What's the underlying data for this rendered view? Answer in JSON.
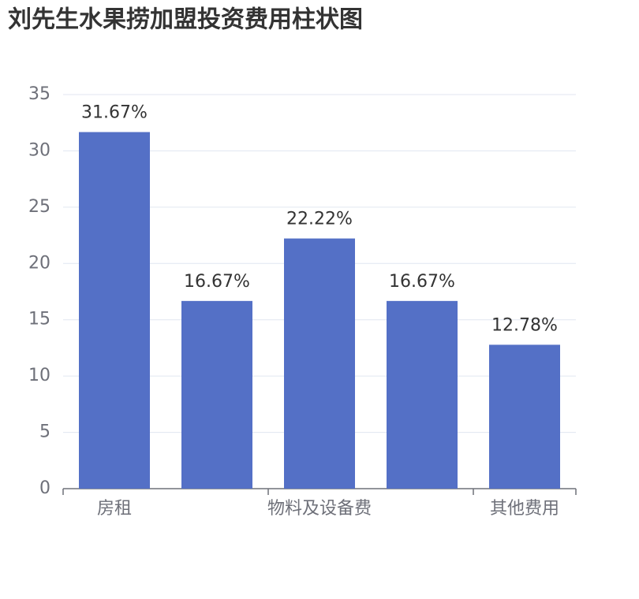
{
  "chart_data": {
    "type": "bar",
    "title": "刘先生水果捞加盟投资费用柱状图",
    "categories": [
      "房租",
      null,
      "物料及设备费",
      null,
      "其他费用"
    ],
    "values": [
      31.67,
      16.67,
      22.22,
      16.67,
      12.78
    ],
    "value_labels": [
      "31.67%",
      "16.67%",
      "22.22%",
      "16.67%",
      "12.78%"
    ],
    "color": "#5470c6",
    "ylim": [
      0,
      35
    ],
    "yticks": [
      0,
      5,
      10,
      15,
      20,
      25,
      30,
      35
    ],
    "grid": true
  }
}
